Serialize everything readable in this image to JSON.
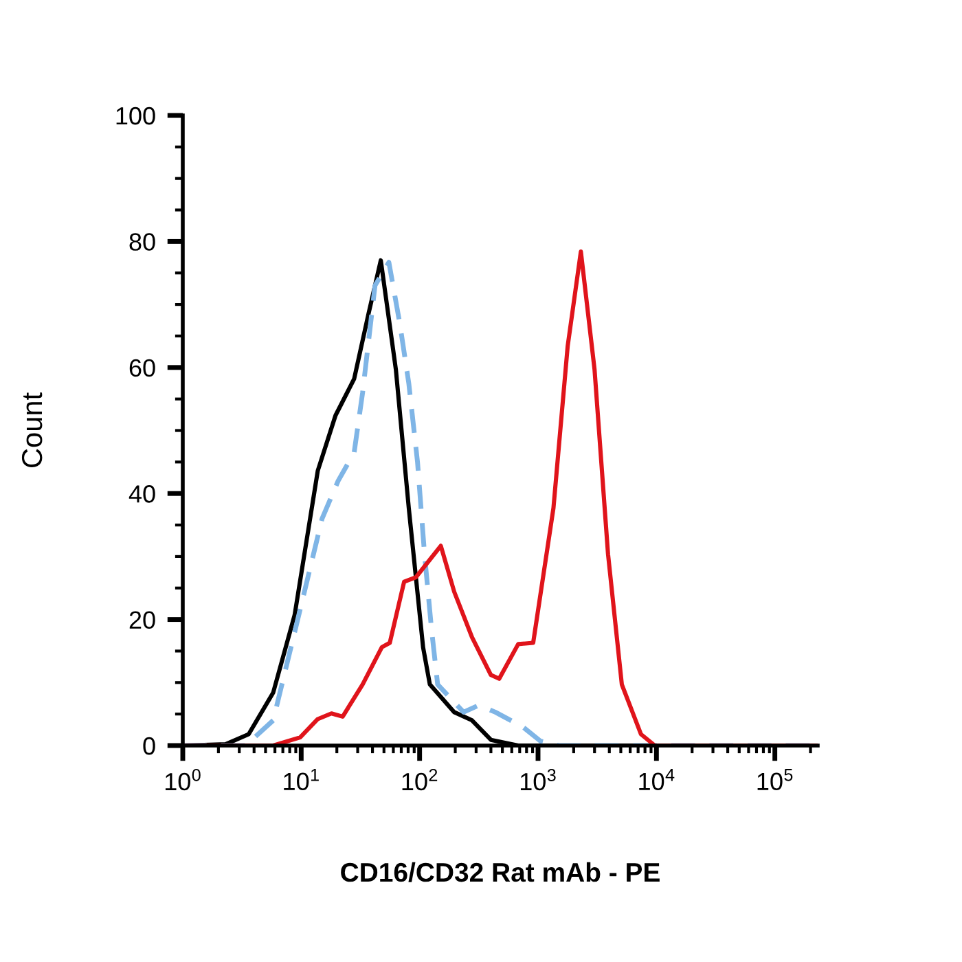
{
  "chart_data": {
    "type": "line",
    "xlabel": "CD16/CD32 Rat mAb - PE",
    "ylabel": "Count",
    "log": "x",
    "xlim": [
      1,
      230000
    ],
    "ylim": [
      0,
      100
    ],
    "xticks": [
      {
        "value": 1,
        "label": "10$^{0}$"
      },
      {
        "value": 10,
        "label": "10$^{1}$"
      },
      {
        "value": 100,
        "label": "10$^{2}$"
      },
      {
        "value": 1000,
        "label": "10$^{3}$"
      },
      {
        "value": 10000,
        "label": "10$^{4}$"
      },
      {
        "value": 100000,
        "label": "10$^{5}$"
      }
    ],
    "yticks": [
      0,
      20,
      40,
      60,
      80,
      100
    ],
    "grid": false,
    "legend": false,
    "marker": "none",
    "series": [
      {
        "color": "#000000",
        "line_style": "solid",
        "x": [
          1,
          2.3,
          3.6,
          5.8,
          8.8,
          13.8,
          19.5,
          28,
          37,
          47,
          63,
          81,
          107,
          122,
          196,
          277,
          400,
          680,
          230000
        ],
        "values": [
          0,
          0.2,
          1.8,
          8.4,
          20.7,
          43.6,
          52.4,
          58.2,
          68.5,
          77,
          59.7,
          37.7,
          15.6,
          9.7,
          5.3,
          4.0,
          0.9,
          0,
          0
        ]
      },
      {
        "color": "#7fb5e6",
        "line_style": "dashed",
        "x": [
          1,
          3.4,
          5.8,
          9.8,
          15,
          20.5,
          28,
          33,
          42,
          55,
          68,
          81,
          96,
          110,
          126,
          142,
          235,
          316,
          436,
          740,
          1050,
          1500,
          230000
        ],
        "values": [
          0,
          0,
          4,
          21.6,
          36,
          42,
          46.5,
          56,
          73,
          76.7,
          67,
          57.5,
          45,
          30.4,
          18.5,
          9.7,
          5.3,
          6.4,
          5.3,
          3,
          0.7,
          0,
          0
        ]
      },
      {
        "color": "#e0141b",
        "line_style": "solid",
        "x": [
          1,
          5.8,
          9.8,
          13.8,
          18,
          22.4,
          33,
          48,
          56,
          74,
          93,
          122,
          151,
          196,
          277,
          400,
          470,
          680,
          910,
          1350,
          1780,
          2300,
          3000,
          3900,
          5100,
          7400,
          9700,
          230000
        ],
        "values": [
          0,
          0,
          1.3,
          4.2,
          5.1,
          4.6,
          9.7,
          15.6,
          16.3,
          26,
          26.7,
          29.5,
          31.7,
          24.4,
          17.2,
          11.2,
          10.6,
          16.1,
          16.3,
          37.7,
          63.4,
          78.4,
          59.7,
          30.4,
          9.7,
          1.8,
          0,
          0
        ]
      }
    ]
  }
}
